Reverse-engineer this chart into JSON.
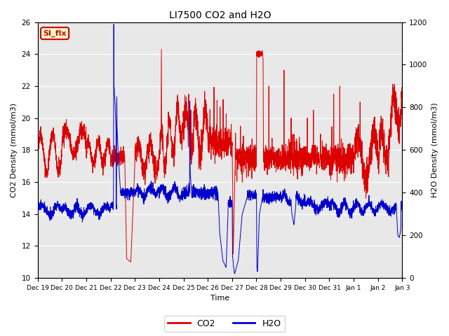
{
  "title": "LI7500 CO2 and H2O",
  "xlabel": "Time",
  "ylabel_left": "CO2 Density (mmol/m3)",
  "ylabel_right": "H2O Density (mmol/m3)",
  "ylim_left": [
    10,
    26
  ],
  "ylim_right": [
    0,
    1200
  ],
  "yticks_left": [
    10,
    12,
    14,
    16,
    18,
    20,
    22,
    24,
    26
  ],
  "yticks_right": [
    0,
    200,
    400,
    600,
    800,
    1000,
    1200
  ],
  "bg_color": "#e8e8e8",
  "fig_bg_color": "#ffffff",
  "annotation_text": "SI_flx",
  "annotation_bg": "#ffffcc",
  "annotation_border": "#cc0000",
  "co2_color": "#dd0000",
  "h2o_color": "#0000cc",
  "legend_co2": "CO2",
  "legend_h2o": "H2O",
  "x_tick_labels": [
    "Dec 19",
    "Dec 20",
    "Dec 21",
    "Dec 22",
    "Dec 23",
    "Dec 24",
    "Dec 25",
    "Dec 26",
    "Dec 27",
    "Dec 28",
    "Dec 29",
    "Dec 30",
    "Dec 31",
    "Jan 1",
    "Jan 2",
    "Jan 3"
  ],
  "x_tick_positions": [
    0,
    1,
    2,
    3,
    4,
    5,
    6,
    7,
    8,
    9,
    10,
    11,
    12,
    13,
    14,
    15
  ]
}
